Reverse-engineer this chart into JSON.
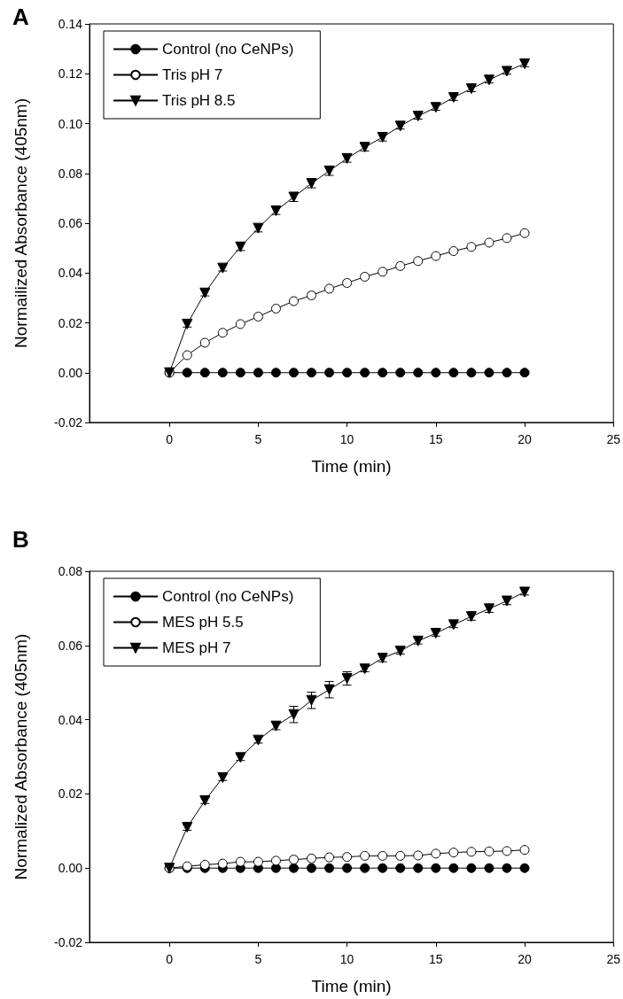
{
  "chart_data": [
    {
      "type": "line",
      "annotations": [
        {
          "text": "A"
        }
      ],
      "xlabel": "Time (min)",
      "ylabel": "Normailized Absorbance (405nm)",
      "x": [
        0,
        1,
        2,
        3,
        4,
        5,
        6,
        7,
        8,
        9,
        10,
        11,
        12,
        13,
        14,
        15,
        16,
        17,
        18,
        19,
        20
      ],
      "series": [
        {
          "name": "Control (no CeNPs)",
          "color": "#000000",
          "marker": "circle",
          "values": [
            0,
            0,
            0,
            0,
            0,
            0,
            0,
            0,
            0,
            0,
            0,
            0,
            0,
            0,
            0,
            0,
            0,
            0,
            0,
            0,
            0
          ]
        },
        {
          "name": "Tris pH 7",
          "color": "#ffffff",
          "marker": "circle",
          "values": [
            0,
            0.007,
            0.012,
            0.016,
            0.0195,
            0.0225,
            0.0257,
            0.0287,
            0.031,
            0.0337,
            0.036,
            0.0385,
            0.0405,
            0.0428,
            0.0448,
            0.0468,
            0.0488,
            0.0505,
            0.0522,
            0.054,
            0.056
          ]
        },
        {
          "name": "Tris pH 8.5",
          "color": "#000000",
          "marker": "triangle",
          "values": [
            0,
            0.0195,
            0.032,
            0.042,
            0.0505,
            0.058,
            0.065,
            0.0705,
            0.076,
            0.081,
            0.086,
            0.0905,
            0.0945,
            0.099,
            0.103,
            0.1065,
            0.1105,
            0.114,
            0.1175,
            0.121,
            0.124
          ],
          "errors": [
            null,
            0.0012,
            0.0012,
            0.0012,
            0.0015,
            0.0015,
            0.0015,
            0.0018,
            0.0018,
            0.0018,
            0.0015,
            0.0015,
            0.0015,
            0.0012,
            0.0012,
            0.0012,
            0.0012,
            0.0012,
            0.0012,
            0.0012,
            0.0012
          ]
        }
      ],
      "xlim": [
        -4.5,
        25
      ],
      "xticks": [
        0,
        5,
        10,
        15,
        20,
        25
      ],
      "ylim": [
        -0.02,
        0.14
      ],
      "yticks": [
        {
          "value": -0.02,
          "label": "-0.02"
        },
        {
          "value": 0,
          "label": "0.00"
        },
        {
          "value": 0.02,
          "label": "0.02"
        },
        {
          "value": 0.04,
          "label": "0.04"
        },
        {
          "value": 0.06,
          "label": "0.06"
        },
        {
          "value": 0.08,
          "label": "0.08"
        },
        {
          "value": 0.1,
          "label": "0.10"
        },
        {
          "value": 0.12,
          "label": "0.12"
        },
        {
          "value": 0.14,
          "label": "0.14"
        }
      ],
      "grid": false,
      "legend": "top left"
    },
    {
      "type": "line",
      "annotations": [
        {
          "text": "B"
        }
      ],
      "xlabel": "Time (min)",
      "ylabel": "Normalized Absorbance (405nm)",
      "x": [
        0,
        1,
        2,
        3,
        4,
        5,
        6,
        7,
        8,
        9,
        10,
        11,
        12,
        13,
        14,
        15,
        16,
        17,
        18,
        19,
        20
      ],
      "series": [
        {
          "name": "Control (no CeNPs)",
          "color": "#000000",
          "marker": "circle",
          "values": [
            0,
            0,
            0,
            0,
            0,
            0,
            0,
            0,
            0,
            0,
            0,
            0,
            0,
            0,
            0,
            0,
            0,
            0,
            0,
            0,
            0
          ]
        },
        {
          "name": "MES pH 5.5",
          "color": "#ffffff",
          "marker": "circle",
          "values": [
            0,
            0.0005,
            0.0009,
            0.0012,
            0.0017,
            0.0017,
            0.002,
            0.0023,
            0.0026,
            0.0029,
            0.003,
            0.0033,
            0.0033,
            0.0033,
            0.0034,
            0.0039,
            0.0042,
            0.0044,
            0.0045,
            0.0046,
            0.0049
          ]
        },
        {
          "name": "MES pH 7",
          "color": "#000000",
          "marker": "triangle",
          "values": [
            0,
            0.011,
            0.0182,
            0.0244,
            0.0298,
            0.0345,
            0.0383,
            0.0414,
            0.0452,
            0.0481,
            0.0511,
            0.0537,
            0.0566,
            0.0585,
            0.0612,
            0.0633,
            0.0656,
            0.0678,
            0.0699,
            0.072,
            0.0744
          ],
          "errors": [
            null,
            0.0008,
            0.0008,
            0.0008,
            0.0008,
            0.0008,
            0.001,
            0.0022,
            0.0022,
            0.0022,
            0.0018,
            0.0008,
            0.001,
            0.0008,
            0.0008,
            0.0008,
            0.0008,
            0.001,
            0.001,
            0.001,
            0.0008
          ]
        }
      ],
      "xlim": [
        -4.5,
        25
      ],
      "xticks": [
        0,
        5,
        10,
        15,
        20,
        25
      ],
      "ylim": [
        -0.02,
        0.08
      ],
      "yticks": [
        {
          "value": -0.02,
          "label": "-0.02"
        },
        {
          "value": 0,
          "label": "0.00"
        },
        {
          "value": 0.02,
          "label": "0.02"
        },
        {
          "value": 0.04,
          "label": "0.04"
        },
        {
          "value": 0.06,
          "label": "0.06"
        },
        {
          "value": 0.08,
          "label": "0.08"
        }
      ],
      "grid": false,
      "legend": "top left"
    }
  ]
}
